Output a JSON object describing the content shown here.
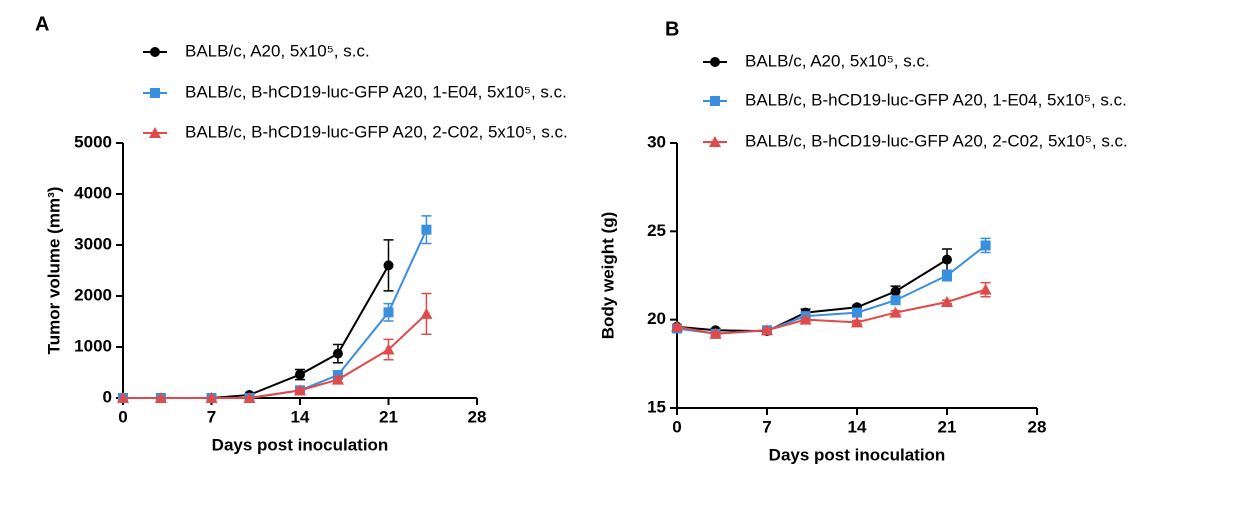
{
  "chart_data": [
    {
      "type": "line",
      "panel_label": "A",
      "xlabel": "Days post inoculation",
      "ylabel": "Tumor volume (mm³)",
      "x": [
        0,
        3,
        7,
        10,
        14,
        17,
        21,
        24
      ],
      "xlim": [
        0,
        28
      ],
      "xticks": [
        0,
        7,
        14,
        21,
        28
      ],
      "ylim": [
        0,
        5000
      ],
      "yticks": [
        0,
        1000,
        2000,
        3000,
        4000,
        5000
      ],
      "series": [
        {
          "name": "BALB/c, A20, 5x10⁵, s.c.",
          "color": "#000000",
          "marker": "circle",
          "values": [
            0,
            0,
            0,
            60,
            460,
            870,
            2600,
            null
          ],
          "errors": [
            0,
            0,
            0,
            20,
            100,
            180,
            500,
            null
          ]
        },
        {
          "name": "BALB/c, B-hCD19-luc-GFP A20, 1-E04, 5x10⁵, s.c.",
          "color": "#3a8fde",
          "marker": "square",
          "values": [
            0,
            0,
            0,
            0,
            150,
            450,
            1680,
            3300
          ],
          "errors": [
            0,
            0,
            0,
            0,
            50,
            80,
            170,
            270
          ]
        },
        {
          "name": "BALB/c, B-hCD19-luc-GFP A20, 2-C02, 5x10⁵, s.c.",
          "color": "#e04a4a",
          "marker": "triangle",
          "values": [
            0,
            0,
            0,
            0,
            150,
            360,
            950,
            1650
          ],
          "errors": [
            0,
            0,
            0,
            0,
            40,
            60,
            200,
            400
          ]
        }
      ]
    },
    {
      "type": "line",
      "panel_label": "B",
      "xlabel": "Days post inoculation",
      "ylabel": "Body weight (g)",
      "x": [
        0,
        3,
        7,
        10,
        14,
        17,
        21,
        24
      ],
      "xlim": [
        0,
        28
      ],
      "xticks": [
        0,
        7,
        14,
        21,
        28
      ],
      "ylim": [
        15,
        30
      ],
      "yticks": [
        15,
        20,
        25,
        30
      ],
      "series": [
        {
          "name": "BALB/c, A20, 5x10⁵, s.c.",
          "color": "#000000",
          "marker": "circle",
          "values": [
            19.6,
            19.4,
            19.35,
            20.4,
            20.7,
            21.6,
            23.4,
            null
          ],
          "errors": [
            0.1,
            0.1,
            0.1,
            0.2,
            0.1,
            0.3,
            0.6,
            null
          ]
        },
        {
          "name": "BALB/c, B-hCD19-luc-GFP A20, 1-E04, 5x10⁵, s.c.",
          "color": "#3a8fde",
          "marker": "square",
          "values": [
            19.5,
            19.2,
            19.4,
            20.2,
            20.4,
            21.1,
            22.5,
            24.2
          ],
          "errors": [
            0.1,
            0.1,
            0.1,
            0.2,
            0.2,
            0.2,
            0.3,
            0.4
          ]
        },
        {
          "name": "BALB/c, B-hCD19-luc-GFP A20, 2-C02, 5x10⁵, s.c.",
          "color": "#e04a4a",
          "marker": "triangle",
          "values": [
            19.6,
            19.2,
            19.4,
            20.0,
            19.85,
            20.4,
            21.0,
            21.7
          ],
          "errors": [
            0.1,
            0.1,
            0.1,
            0.1,
            0.1,
            0.1,
            0.1,
            0.4
          ]
        }
      ]
    }
  ]
}
